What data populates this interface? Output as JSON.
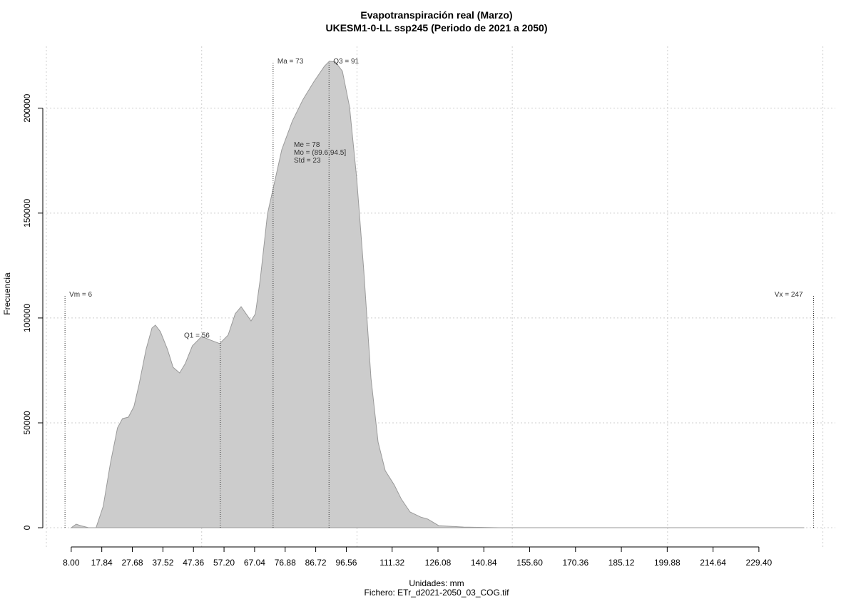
{
  "chart_data": {
    "type": "area",
    "title": "Evapotranspiración real (Marzo)",
    "subtitle": "UKESM1-0-LL ssp245 (Periodo de 2021 a 2050)",
    "x_label": "Unidades: mm",
    "y_label": "Frecuencia",
    "footer": "Fichero: ETr_d2021-2050_03_COG.tif",
    "color": "#cccccc",
    "line_color": "#9a9a9a",
    "grid": true,
    "x": [
      8,
      9.6,
      11,
      13.7,
      16,
      18.3,
      20.6,
      22.9,
      24.5,
      26.4,
      28.2,
      29.8,
      32.1,
      34,
      35.1,
      36.7,
      39,
      40.8,
      42.9,
      44.7,
      47,
      50,
      52.8,
      55.8,
      58.5,
      60.8,
      62.7,
      64.3,
      65.9,
      67.3,
      68.9,
      71.2,
      73.5,
      75.8,
      79.2,
      82.6,
      86.1,
      89.5,
      91.1,
      93,
      95.3,
      97.6,
      99.9,
      102.2,
      104.5,
      106.8,
      109.1,
      112,
      114.3,
      117.1,
      120.5,
      122.8,
      126.3,
      134.3,
      145.8,
      244
    ],
    "values": [
      0,
      1700,
      1000,
      0,
      0,
      10200,
      30600,
      47600,
      52000,
      52700,
      57800,
      68000,
      85000,
      95200,
      96600,
      93500,
      85000,
      76500,
      73800,
      78200,
      86700,
      91200,
      89500,
      87800,
      91800,
      102000,
      105400,
      102000,
      98600,
      102000,
      119000,
      149700,
      165000,
      180300,
      193900,
      204100,
      212600,
      220000,
      222400,
      222100,
      217700,
      200700,
      166700,
      122400,
      71400,
      40800,
      27200,
      20400,
      13600,
      7500,
      5100,
      4100,
      1000,
      300,
      0,
      0
    ],
    "xlim": [
      0,
      254
    ],
    "ylim": [
      -9500,
      229500
    ],
    "xticks": [
      {
        "value": 8,
        "label": "8.00"
      },
      {
        "value": 17.84,
        "label": "17.84"
      },
      {
        "value": 27.68,
        "label": "27.68"
      },
      {
        "value": 37.52,
        "label": "37.52"
      },
      {
        "value": 47.36,
        "label": "47.36"
      },
      {
        "value": 57.2,
        "label": "57.20"
      },
      {
        "value": 67.04,
        "label": "67.04"
      },
      {
        "value": 76.88,
        "label": "76.88"
      },
      {
        "value": 86.72,
        "label": "86.72"
      },
      {
        "value": 96.56,
        "label": "96.56"
      },
      {
        "value": 111.32,
        "label": "111.32"
      },
      {
        "value": 126.08,
        "label": "126.08"
      },
      {
        "value": 140.84,
        "label": "140.84"
      },
      {
        "value": 155.6,
        "label": "155.60"
      },
      {
        "value": 170.36,
        "label": "170.36"
      },
      {
        "value": 185.12,
        "label": "185.12"
      },
      {
        "value": 199.88,
        "label": "199.88"
      },
      {
        "value": 214.64,
        "label": "214.64"
      },
      {
        "value": 229.4,
        "label": "229.40"
      }
    ],
    "xgrid": [
      0,
      50,
      100,
      150,
      200,
      250
    ],
    "yticks": [
      0,
      50000,
      100000,
      150000,
      200000
    ],
    "markers": [
      {
        "label": "Vm = 6",
        "value": 6
      },
      {
        "label": "Q1 = 56",
        "value": 56
      },
      {
        "label": "Ma = 73",
        "value": 73
      },
      {
        "label": "Q3 = 91",
        "value": 91
      },
      {
        "label": "Vx = 247",
        "value": 247
      }
    ],
    "stats": [
      "Me = 78",
      "Mo = (89.6,94.5]",
      "Std = 23"
    ]
  }
}
